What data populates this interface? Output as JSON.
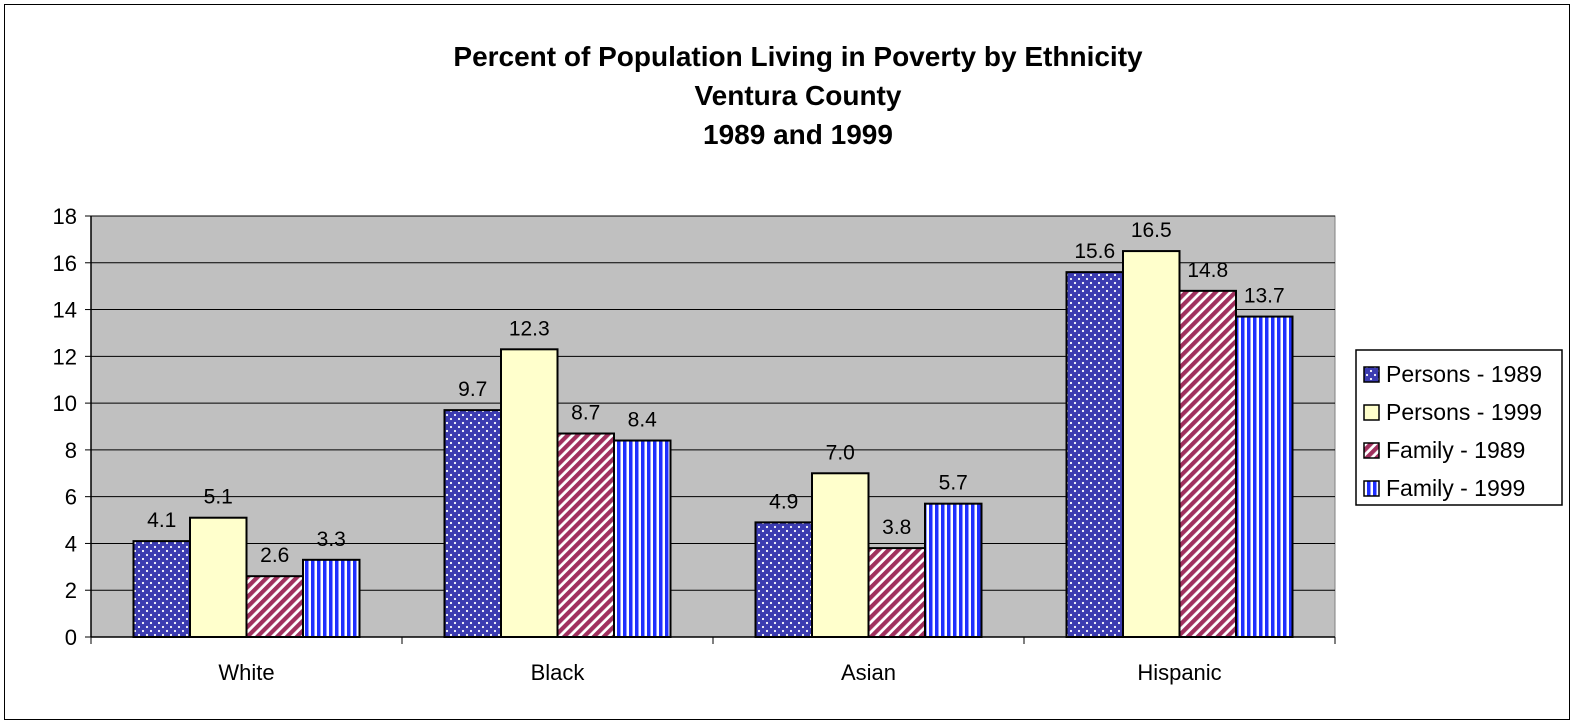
{
  "chart_data": {
    "type": "bar",
    "title_lines": [
      "Percent of Population Living in Poverty by Ethnicity",
      "Ventura County",
      "1989 and 1999"
    ],
    "categories": [
      "White",
      "Black",
      "Asian",
      "Hispanic"
    ],
    "series": [
      {
        "name": "Persons - 1989",
        "values": [
          4.1,
          9.7,
          4.9,
          15.6
        ],
        "labels": [
          "4.1",
          "9.7",
          "4.9",
          "15.6"
        ],
        "color": "#3b3bb0",
        "pattern": "dots"
      },
      {
        "name": "Persons - 1999",
        "values": [
          5.1,
          12.3,
          7.0,
          16.5
        ],
        "labels": [
          "5.1",
          "12.3",
          "7.0",
          "16.5"
        ],
        "color": "#ffffcc",
        "pattern": "solid"
      },
      {
        "name": "Family - 1989",
        "values": [
          2.6,
          8.7,
          3.8,
          14.8
        ],
        "labels": [
          "2.6",
          "8.7",
          "3.8",
          "14.8"
        ],
        "color": "#a0305e",
        "pattern": "diagonal"
      },
      {
        "name": "Family - 1999",
        "values": [
          3.3,
          8.4,
          5.7,
          13.7
        ],
        "labels": [
          "3.3",
          "8.4",
          "5.7",
          "13.7"
        ],
        "color": "#1f2fff",
        "pattern": "vertical"
      }
    ],
    "yticks": [
      "0",
      "2",
      "4",
      "6",
      "8",
      "10",
      "12",
      "14",
      "16",
      "18"
    ],
    "ylim": [
      0,
      18
    ],
    "xlabel": "",
    "ylabel": "",
    "grid": true,
    "plot_background": "#c0c0c0",
    "legend_position": "right"
  }
}
